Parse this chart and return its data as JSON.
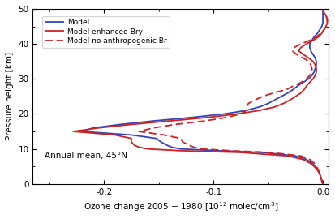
{
  "title_annotation": "Annual mean, 45°N",
  "xlabel": "Ozone change 2005 – 1980 [10$^{12}$ molec/cm$^3$]",
  "ylabel": "Pressure height [km]",
  "xlim": [
    -0.265,
    0.005
  ],
  "ylim": [
    0,
    50
  ],
  "xticks": [
    -0.2,
    -0.1,
    0.0
  ],
  "yticks": [
    0,
    10,
    20,
    30,
    40,
    50
  ],
  "legend_labels": [
    "Model",
    "Model enhanced Bry",
    "Model no anthropogenic Br"
  ],
  "color_blue": "#3344bb",
  "color_red": "#cc2222",
  "annotation_text": "Annual mean, 45°N",
  "alt": [
    0,
    1,
    2,
    3,
    4,
    5,
    6,
    7,
    8,
    9,
    9.5,
    10,
    10.5,
    11,
    12,
    13,
    14,
    15,
    16,
    17,
    18,
    19,
    20,
    21,
    22,
    23,
    24,
    25,
    26,
    27,
    27.5,
    28,
    29,
    30,
    31,
    32,
    33,
    34,
    35,
    36,
    37,
    38,
    39,
    40,
    41,
    42,
    43,
    44,
    45,
    46,
    47,
    48,
    49,
    50
  ],
  "model_blue": [
    0.0,
    -0.001,
    -0.002,
    -0.003,
    -0.005,
    -0.007,
    -0.01,
    -0.015,
    -0.025,
    -0.055,
    -0.095,
    -0.13,
    -0.138,
    -0.142,
    -0.148,
    -0.152,
    -0.175,
    -0.22,
    -0.21,
    -0.185,
    -0.155,
    -0.12,
    -0.09,
    -0.07,
    -0.058,
    -0.05,
    -0.044,
    -0.038,
    -0.032,
    -0.027,
    -0.025,
    -0.023,
    -0.018,
    -0.013,
    -0.01,
    -0.008,
    -0.007,
    -0.006,
    -0.006,
    -0.007,
    -0.009,
    -0.011,
    -0.012,
    -0.012,
    -0.01,
    -0.008,
    -0.005,
    -0.003,
    -0.001,
    0.0,
    0.0,
    0.0,
    0.0,
    0.0
  ],
  "model_red_solid": [
    0.0,
    -0.001,
    -0.002,
    -0.003,
    -0.005,
    -0.008,
    -0.012,
    -0.018,
    -0.032,
    -0.075,
    -0.13,
    -0.16,
    -0.168,
    -0.172,
    -0.175,
    -0.175,
    -0.19,
    -0.228,
    -0.205,
    -0.175,
    -0.14,
    -0.105,
    -0.078,
    -0.058,
    -0.044,
    -0.036,
    -0.03,
    -0.025,
    -0.02,
    -0.017,
    -0.016,
    -0.015,
    -0.012,
    -0.009,
    -0.007,
    -0.006,
    -0.006,
    -0.007,
    -0.009,
    -0.013,
    -0.018,
    -0.022,
    -0.02,
    -0.015,
    -0.009,
    -0.004,
    -0.001,
    0.001,
    0.003,
    0.004,
    0.004,
    0.003,
    0.001,
    0.0
  ],
  "model_red_dashed": [
    0.0,
    -0.001,
    -0.002,
    -0.003,
    -0.004,
    -0.006,
    -0.008,
    -0.012,
    -0.02,
    -0.048,
    -0.085,
    -0.11,
    -0.118,
    -0.122,
    -0.128,
    -0.13,
    -0.145,
    -0.168,
    -0.155,
    -0.135,
    -0.108,
    -0.088,
    -0.075,
    -0.07,
    -0.07,
    -0.068,
    -0.062,
    -0.055,
    -0.045,
    -0.033,
    -0.03,
    -0.027,
    -0.02,
    -0.015,
    -0.012,
    -0.01,
    -0.01,
    -0.011,
    -0.013,
    -0.018,
    -0.024,
    -0.028,
    -0.026,
    -0.02,
    -0.012,
    -0.006,
    -0.002,
    0.001,
    0.003,
    0.004,
    0.004,
    0.003,
    0.001,
    0.0
  ]
}
